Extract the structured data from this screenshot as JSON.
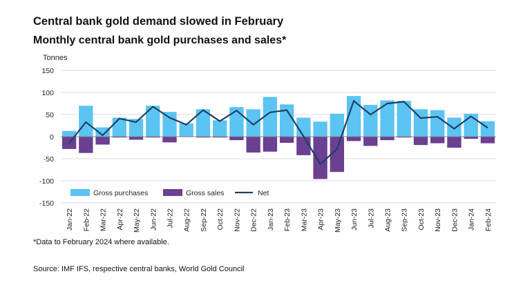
{
  "title": "Central bank gold demand slowed in February",
  "subtitle": "Monthly central bank gold purchases and sales*",
  "units": "Tonnes",
  "footnote": "*Data to February 2024 where available.",
  "source": "Source: IMF IFS, respective central banks, World Gold Council",
  "colors": {
    "purchases": "#5bc4f2",
    "sales": "#6b3f91",
    "net": "#1f3f63",
    "grid": "#dedede",
    "zero": "#888888"
  },
  "chart_data": {
    "type": "bar",
    "title": "Monthly central bank gold purchases and sales*",
    "ylabel": "Tonnes",
    "xlabel": "",
    "ylim": [
      -150,
      150
    ],
    "yticks": [
      150,
      100,
      50,
      0,
      -50,
      -100,
      -150
    ],
    "grid": true,
    "legend_position": "bottom-left",
    "categories": [
      "Jan-22",
      "Feb-22",
      "Mar-22",
      "Apr-22",
      "May-22",
      "Jun-22",
      "Jul-22",
      "Aug-22",
      "Sep-22",
      "Oct-22",
      "Nov-22",
      "Dec-22",
      "Jan-23",
      "Feb-23",
      "Mar-23",
      "Apr-23",
      "May-23",
      "Jun-23",
      "Jul-23",
      "Aug-23",
      "Sep-23",
      "Oct-23",
      "Nov-23",
      "Dec-23",
      "Jan-24",
      "Feb-24"
    ],
    "series": [
      {
        "name": "Gross purchases",
        "type": "bar",
        "values": [
          13,
          70,
          21,
          43,
          40,
          70,
          56,
          30,
          62,
          37,
          67,
          62,
          90,
          73,
          43,
          34,
          52,
          92,
          72,
          82,
          81,
          62,
          60,
          43,
          52,
          35
        ]
      },
      {
        "name": "Gross sales",
        "type": "bar",
        "values": [
          -28,
          -37,
          -18,
          -2,
          -7,
          -2,
          -13,
          -1,
          -2,
          -2,
          -8,
          -36,
          -34,
          -14,
          -42,
          -96,
          -80,
          -10,
          -21,
          -8,
          -2,
          -19,
          -15,
          -25,
          -5,
          -15
        ]
      },
      {
        "name": "Net",
        "type": "line",
        "values": [
          -15,
          33,
          3,
          41,
          33,
          68,
          43,
          27,
          60,
          35,
          59,
          27,
          55,
          60,
          1,
          -62,
          -28,
          81,
          50,
          75,
          79,
          42,
          45,
          18,
          46,
          20
        ]
      }
    ]
  }
}
